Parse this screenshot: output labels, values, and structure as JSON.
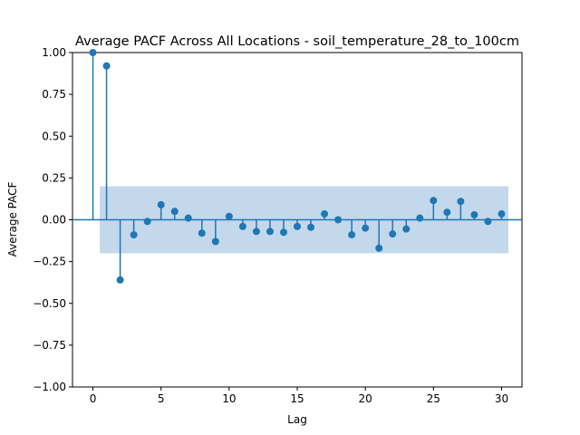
{
  "chart_data": {
    "type": "stem",
    "title": "Average PACF Across All Locations - soil_temperature_28_to_100cm",
    "xlabel": "Lag",
    "ylabel": "Average PACF",
    "xlim": [
      -1.5,
      31.5
    ],
    "ylim": [
      -1.0,
      1.0
    ],
    "xticks": [
      0,
      5,
      10,
      15,
      20,
      25,
      30
    ],
    "yticks": [
      -1.0,
      -0.75,
      -0.5,
      -0.25,
      0.0,
      0.25,
      0.5,
      0.75,
      1.0
    ],
    "ytick_labels": [
      "−1.00",
      "−0.75",
      "−0.50",
      "−0.25",
      "0.00",
      "0.25",
      "0.50",
      "0.75",
      "1.00"
    ],
    "confidence_band": {
      "x_range": [
        0.5,
        30.5
      ],
      "lower": -0.2,
      "upper": 0.2
    },
    "series": [
      {
        "x": [
          0,
          1,
          2,
          3,
          4,
          5,
          6,
          7,
          8,
          9,
          10,
          11,
          12,
          13,
          14,
          15,
          16,
          17,
          18,
          19,
          20,
          21,
          22,
          23,
          24,
          25,
          26,
          27,
          28,
          29,
          30
        ],
        "values": [
          1.0,
          0.92,
          -0.36,
          -0.09,
          -0.01,
          0.09,
          0.05,
          0.01,
          -0.08,
          -0.13,
          0.02,
          -0.04,
          -0.07,
          -0.07,
          -0.075,
          -0.04,
          -0.045,
          0.035,
          0.0,
          -0.09,
          -0.05,
          -0.17,
          -0.085,
          -0.055,
          0.01,
          0.115,
          0.045,
          0.11,
          0.03,
          -0.01,
          0.035
        ]
      }
    ],
    "colors": {
      "marker": "#1f77b4",
      "band": "#c3d8eb",
      "axes": "#000000"
    },
    "grid": false,
    "legend": "none"
  }
}
